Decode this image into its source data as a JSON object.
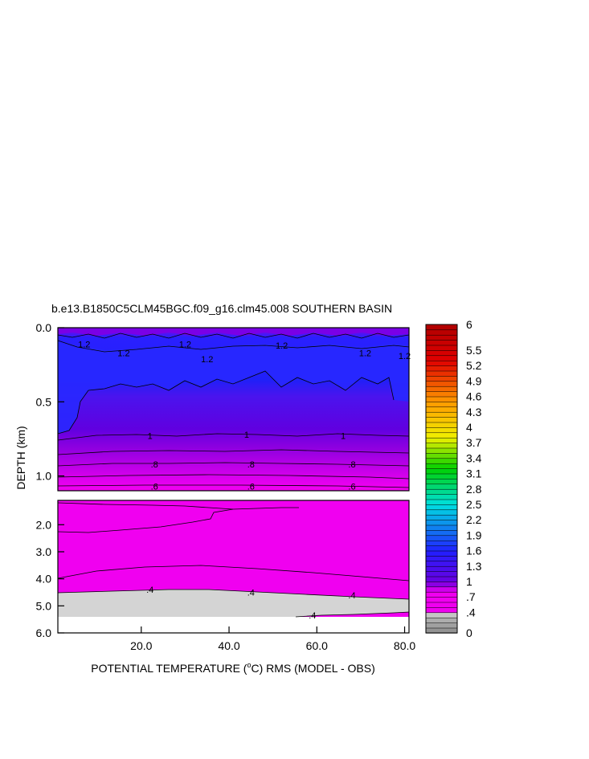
{
  "chart_data": {
    "type": "heatmap",
    "title": "b.e13.B1850C5CLM45BGC.f09_g16.clm45.008 SOUTHERN BASIN",
    "xlabel_prefix": "POTENTIAL TEMPERATURE (",
    "xlabel_unit_o": "o",
    "xlabel_suffix": "C) RMS (MODEL - OBS)",
    "ylabel": "DEPTH (km)",
    "x_ticks": [
      "20.0",
      "40.0",
      "60.0",
      "80.0"
    ],
    "x_tick_values": [
      20,
      40,
      60,
      80
    ],
    "xlim": [
      1,
      81
    ],
    "upper_panel": {
      "ylim": [
        0.0,
        1.1
      ],
      "y_ticks": [
        "0.0",
        "0.5",
        "1.0"
      ],
      "y_tick_values": [
        0.0,
        0.5,
        1.0
      ]
    },
    "lower_panel": {
      "ylim": [
        1.1,
        6.0
      ],
      "y_ticks": [
        "2.0",
        "3.0",
        "4.0",
        "5.0",
        "6.0"
      ],
      "y_tick_values": [
        2.0,
        3.0,
        4.0,
        5.0,
        6.0
      ]
    },
    "contour_labels_upper": [
      {
        "text": "1.2",
        "x": 7,
        "depth": 0.11
      },
      {
        "text": "1.2",
        "x": 16,
        "depth": 0.17
      },
      {
        "text": "1.2",
        "x": 30,
        "depth": 0.11
      },
      {
        "text": "1.2",
        "x": 35,
        "depth": 0.21
      },
      {
        "text": "1.2",
        "x": 52,
        "depth": 0.12
      },
      {
        "text": "1.2",
        "x": 71,
        "depth": 0.17
      },
      {
        "text": "1.2",
        "x": 80,
        "depth": 0.19
      },
      {
        "text": "1",
        "x": 22,
        "depth": 0.73
      },
      {
        "text": "1",
        "x": 44,
        "depth": 0.72
      },
      {
        "text": "1",
        "x": 66,
        "depth": 0.73
      },
      {
        "text": ".8",
        "x": 23,
        "depth": 0.92
      },
      {
        "text": ".8",
        "x": 45,
        "depth": 0.92
      },
      {
        "text": ".8",
        "x": 68,
        "depth": 0.92
      },
      {
        "text": ".6",
        "x": 23,
        "depth": 1.07
      },
      {
        "text": ".6",
        "x": 45,
        "depth": 1.07
      },
      {
        "text": ".6",
        "x": 68,
        "depth": 1.07
      }
    ],
    "contour_labels_lower": [
      {
        "text": ".4",
        "x": 22,
        "depth": 4.4
      },
      {
        "text": ".4",
        "x": 45,
        "depth": 4.5
      },
      {
        "text": ".4",
        "x": 68,
        "depth": 4.6
      },
      {
        "text": ".4",
        "x": 59,
        "depth": 5.35
      }
    ],
    "colorbar": {
      "labels": [
        "6",
        "5.5",
        "5.2",
        "4.9",
        "4.6",
        "4.3",
        "4",
        "3.7",
        "3.4",
        "3.1",
        "2.8",
        "2.5",
        "2.2",
        "1.9",
        "1.6",
        "1.3",
        "1",
        ".7",
        ".4",
        "0"
      ],
      "levels_bottom_to_top": [
        0,
        0.1,
        0.2,
        0.3,
        0.4,
        0.5,
        0.6,
        0.7,
        0.8,
        0.9,
        1.0,
        1.1,
        1.2,
        1.3,
        1.4,
        1.5,
        1.6,
        1.7,
        1.8,
        1.9,
        2.0,
        2.1,
        2.2,
        2.3,
        2.4,
        2.5,
        2.6,
        2.7,
        2.8,
        2.9,
        3.0,
        3.1,
        3.2,
        3.3,
        3.4,
        3.5,
        3.6,
        3.7,
        3.8,
        3.9,
        4.0,
        4.1,
        4.2,
        4.3,
        4.4,
        4.5,
        4.6,
        4.7,
        4.8,
        4.9,
        5.0,
        5.1,
        5.2,
        5.3,
        5.4,
        5.5,
        5.6,
        5.7,
        5.8,
        5.9,
        6.0
      ],
      "colors": {
        "gray_low": "#8c8c8c",
        "gray_mid": "#b4b4b4",
        "gray_high": "#d4d4d4",
        "magenta": "#f000f0",
        "purple_deep": "#6a00e0",
        "blue": "#2020ff",
        "cyan": "#00e0e0",
        "green": "#00d000",
        "yellow": "#f0f000",
        "orange": "#ff9a00",
        "red": "#e00000",
        "dark_red": "#b00000"
      }
    }
  }
}
